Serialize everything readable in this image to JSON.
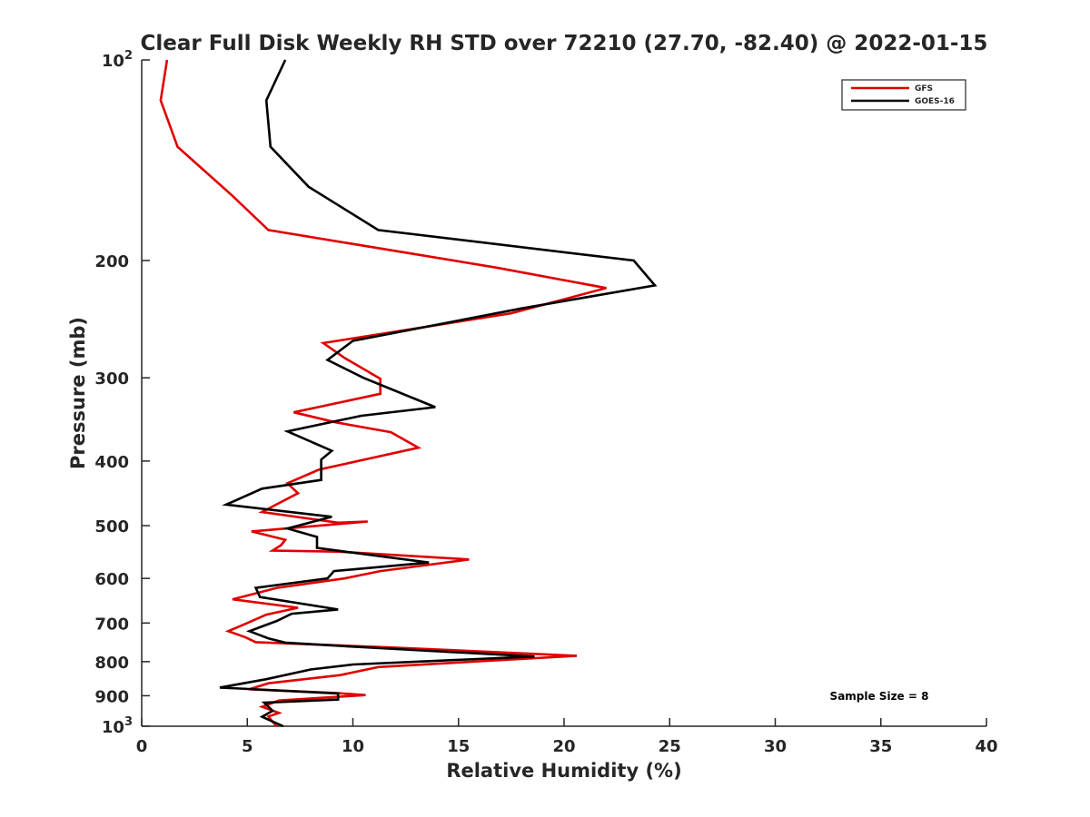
{
  "chart_data": {
    "type": "line",
    "title": "Clear Full Disk Weekly RH STD over 72210 (27.70, -82.40) @ 2022-01-15",
    "xlabel": "Relative Humidity (%)",
    "ylabel": "Pressure (mb)",
    "xlim": [
      0,
      40
    ],
    "ylim": [
      100,
      1000
    ],
    "y_scale": "log",
    "y_reversed": true,
    "x_ticks": [
      "0",
      "5",
      "10",
      "15",
      "20",
      "25",
      "30",
      "35",
      "40"
    ],
    "y_ticks": [
      {
        "value": 100,
        "base": "10",
        "exp": "2"
      },
      {
        "value": 200,
        "label": "200"
      },
      {
        "value": 300,
        "label": "300"
      },
      {
        "value": 400,
        "label": "400"
      },
      {
        "value": 500,
        "label": "500"
      },
      {
        "value": 600,
        "label": "600"
      },
      {
        "value": 700,
        "label": "700"
      },
      {
        "value": 800,
        "label": "800"
      },
      {
        "value": 900,
        "label": "900"
      },
      {
        "value": 1000,
        "base": "10",
        "exp": "3"
      }
    ],
    "grid": false,
    "legend_position": "top-right",
    "annotation": "Sample Size = 8",
    "series": [
      {
        "name": "GFS",
        "color": "#e00000",
        "points": [
          [
            1.2,
            100
          ],
          [
            0.9,
            115
          ],
          [
            1.7,
            135
          ],
          [
            4.3,
            160
          ],
          [
            6.0,
            180
          ],
          [
            16.8,
            205
          ],
          [
            22.0,
            220
          ],
          [
            17.5,
            240
          ],
          [
            8.6,
            266
          ],
          [
            9.6,
            280
          ],
          [
            11.3,
            301
          ],
          [
            11.3,
            317
          ],
          [
            7.2,
            338
          ],
          [
            9.2,
            350
          ],
          [
            11.8,
            362
          ],
          [
            13.1,
            382
          ],
          [
            8.4,
            412
          ],
          [
            6.9,
            432
          ],
          [
            7.4,
            447
          ],
          [
            5.7,
            477
          ],
          [
            9.3,
            495
          ],
          [
            10.7,
            493
          ],
          [
            5.2,
            510
          ],
          [
            6.8,
            525
          ],
          [
            6.6,
            535
          ],
          [
            6.2,
            545
          ],
          [
            9.3,
            547
          ],
          [
            15.5,
            562
          ],
          [
            11.3,
            585
          ],
          [
            9.6,
            600
          ],
          [
            6.4,
            620
          ],
          [
            4.3,
            645
          ],
          [
            7.4,
            664
          ],
          [
            5.9,
            680
          ],
          [
            5.0,
            700
          ],
          [
            4.1,
            720
          ],
          [
            4.9,
            735
          ],
          [
            5.4,
            748
          ],
          [
            12.0,
            762
          ],
          [
            20.6,
            784
          ],
          [
            11.2,
            815
          ],
          [
            9.4,
            838
          ],
          [
            6.0,
            862
          ],
          [
            5.1,
            880
          ],
          [
            9.3,
            892
          ],
          [
            10.6,
            898
          ],
          [
            6.5,
            915
          ],
          [
            5.7,
            935
          ],
          [
            6.5,
            955
          ],
          [
            6.0,
            967
          ],
          [
            6.2,
            985
          ],
          [
            6.4,
            1000
          ]
        ]
      },
      {
        "name": "GOES-16",
        "color": "#000000",
        "points": [
          [
            6.8,
            100
          ],
          [
            5.9,
            115
          ],
          [
            6.1,
            135
          ],
          [
            7.9,
            155
          ],
          [
            11.2,
            180
          ],
          [
            23.3,
            200
          ],
          [
            24.3,
            218
          ],
          [
            18.0,
            236
          ],
          [
            10.0,
            264
          ],
          [
            8.8,
            282
          ],
          [
            10.5,
            300
          ],
          [
            13.9,
            332
          ],
          [
            10.4,
            342
          ],
          [
            6.9,
            361
          ],
          [
            9.0,
            386
          ],
          [
            8.5,
            398
          ],
          [
            8.5,
            427
          ],
          [
            5.7,
            440
          ],
          [
            4.0,
            465
          ],
          [
            9.0,
            485
          ],
          [
            6.9,
            505
          ],
          [
            8.3,
            520
          ],
          [
            8.3,
            540
          ],
          [
            13.6,
            568
          ],
          [
            9.1,
            585
          ],
          [
            8.8,
            600
          ],
          [
            5.4,
            620
          ],
          [
            5.6,
            640
          ],
          [
            9.3,
            668
          ],
          [
            7.1,
            678
          ],
          [
            6.4,
            695
          ],
          [
            5.1,
            720
          ],
          [
            6.0,
            738
          ],
          [
            6.8,
            749
          ],
          [
            10.1,
            760
          ],
          [
            18.6,
            786
          ],
          [
            10.0,
            808
          ],
          [
            8.0,
            822
          ],
          [
            5.9,
            850
          ],
          [
            3.7,
            875
          ],
          [
            9.3,
            893
          ],
          [
            9.3,
            912
          ],
          [
            5.8,
            922
          ],
          [
            6.2,
            948
          ],
          [
            5.7,
            968
          ],
          [
            6.7,
            1000
          ]
        ]
      }
    ]
  }
}
